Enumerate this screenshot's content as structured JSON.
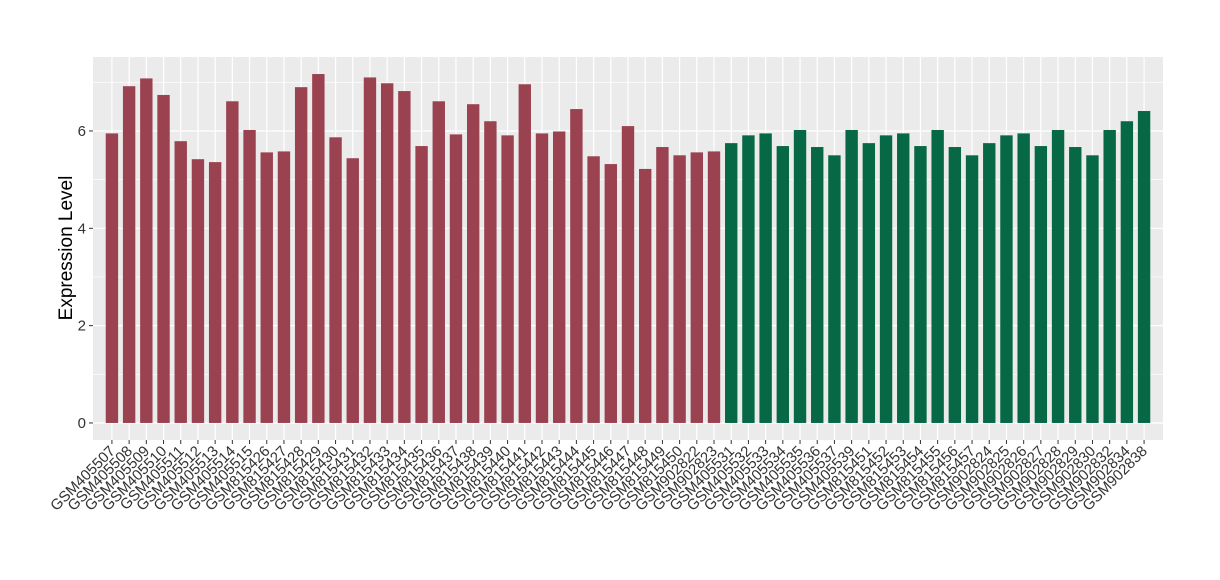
{
  "chart_data": {
    "type": "bar",
    "y_label": "Expression Level",
    "categories": [
      "GSM405507",
      "GSM405508",
      "GSM405509",
      "GSM405510",
      "GSM405511",
      "GSM405512",
      "GSM405513",
      "GSM405514",
      "GSM405515",
      "GSM815426",
      "GSM815427",
      "GSM815428",
      "GSM815429",
      "GSM815430",
      "GSM815431",
      "GSM815432",
      "GSM815433",
      "GSM815434",
      "GSM815435",
      "GSM815436",
      "GSM815437",
      "GSM815438",
      "GSM815439",
      "GSM815440",
      "GSM815441",
      "GSM815442",
      "GSM815443",
      "GSM815444",
      "GSM815445",
      "GSM815446",
      "GSM815447",
      "GSM815448",
      "GSM815449",
      "GSM815450",
      "GSM902822",
      "GSM902823",
      "GSM405531",
      "GSM405532",
      "GSM405533",
      "GSM405534",
      "GSM405535",
      "GSM405536",
      "GSM405537",
      "GSM405539",
      "GSM815451",
      "GSM815452",
      "GSM815453",
      "GSM815454",
      "GSM815455",
      "GSM815456",
      "GSM815457",
      "GSM902824",
      "GSM902825",
      "GSM902826",
      "GSM902827",
      "GSM902828",
      "GSM902829",
      "GSM902830",
      "GSM902832",
      "GSM902834",
      "GSM902838"
    ],
    "values": [
      5.95,
      6.92,
      7.08,
      6.74,
      5.79,
      5.42,
      5.36,
      6.61,
      6.02,
      5.56,
      5.58,
      6.9,
      7.17,
      5.87,
      5.44,
      7.1,
      6.98,
      6.82,
      5.69,
      6.61,
      5.93,
      6.55,
      6.2,
      5.91,
      6.96,
      5.95,
      5.99,
      6.45,
      5.48,
      5.32,
      6.1,
      5.22,
      5.67,
      5.5,
      5.56,
      5.58,
      5.75,
      5.91,
      5.95,
      5.69,
      6.02,
      5.67,
      5.5,
      6.02,
      5.75,
      5.91,
      5.95,
      5.69,
      6.02,
      5.67,
      5.5,
      5.75,
      5.91,
      5.95,
      5.69,
      6.02,
      5.67,
      5.5,
      6.02,
      6.2,
      6.41
    ],
    "colors": [
      "#9a4250",
      "#9a4250",
      "#9a4250",
      "#9a4250",
      "#9a4250",
      "#9a4250",
      "#9a4250",
      "#9a4250",
      "#9a4250",
      "#9a4250",
      "#9a4250",
      "#9a4250",
      "#9a4250",
      "#9a4250",
      "#9a4250",
      "#9a4250",
      "#9a4250",
      "#9a4250",
      "#9a4250",
      "#9a4250",
      "#9a4250",
      "#9a4250",
      "#9a4250",
      "#9a4250",
      "#9a4250",
      "#9a4250",
      "#9a4250",
      "#9a4250",
      "#9a4250",
      "#9a4250",
      "#9a4250",
      "#9a4250",
      "#9a4250",
      "#9a4250",
      "#9a4250",
      "#9a4250",
      "#066844",
      "#066844",
      "#066844",
      "#066844",
      "#066844",
      "#066844",
      "#066844",
      "#066844",
      "#066844",
      "#066844",
      "#066844",
      "#066844",
      "#066844",
      "#066844",
      "#066844",
      "#066844",
      "#066844",
      "#066844",
      "#066844",
      "#066844",
      "#066844",
      "#066844",
      "#066844",
      "#066844",
      "#066844"
    ],
    "ylim": [
      -0.35,
      7.52
    ],
    "yticks": [
      0,
      2,
      4,
      6
    ],
    "grid": true
  }
}
